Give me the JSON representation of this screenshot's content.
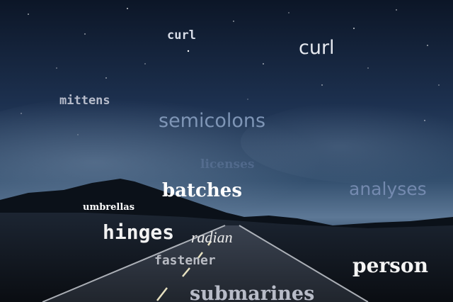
{
  "words": {
    "curl_small": "curl",
    "curl_large": "curl",
    "mittens": "mittens",
    "semicolons": "semicolons",
    "licenses": "licenses",
    "analyses": "analyses",
    "batches": "batches",
    "umbrellas": "umbrellas",
    "hinges": "hinges",
    "radian": "radian",
    "fastener": "fastener",
    "person": "person",
    "submarines": "submarines"
  },
  "colors": {
    "sky_top": "#0f1a2c",
    "sky_mid": "#2c4564",
    "sky_horizon": "#6f8aa6",
    "ground": "#0d1219",
    "mountain": "#0a0f16",
    "road": "#2a2f38",
    "road_line": "#e6e0c0"
  }
}
